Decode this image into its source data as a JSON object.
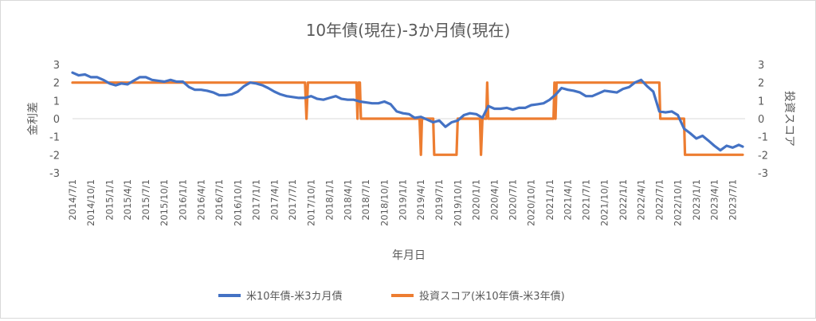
{
  "chart_data": {
    "type": "line",
    "title": "10年債(現在)-3か月債(現在)",
    "xlabel": "年月日",
    "ylabel_left": "金利差",
    "ylabel_right": "投資スコア",
    "ylim_left": [
      -3,
      3
    ],
    "ylim_right": [
      -3,
      3
    ],
    "yticks": [
      "3",
      "2",
      "1",
      "0",
      "-1",
      "-2",
      "-3"
    ],
    "xlim": [
      "2014-07-01",
      "2023-09-01"
    ],
    "x_tick_labels": [
      "2014/7/1",
      "2014/10/1",
      "2015/1/1",
      "2015/4/1",
      "2015/7/1",
      "2015/10/1",
      "2016/1/1",
      "2016/4/1",
      "2016/7/1",
      "2016/10/1",
      "2017/1/1",
      "2017/4/1",
      "2017/7/1",
      "2017/10/1",
      "2018/1/1",
      "2018/4/1",
      "2018/7/1",
      "2018/10/1",
      "2019/1/1",
      "2019/4/1",
      "2019/7/1",
      "2019/10/1",
      "2020/1/1",
      "2020/4/1",
      "2020/7/1",
      "2020/10/1",
      "2021/1/1",
      "2021/4/1",
      "2021/7/1",
      "2021/10/1",
      "2022/1/1",
      "2022/4/1",
      "2022/7/1",
      "2022/10/1",
      "2023/1/1",
      "2023/4/1",
      "2023/7/1"
    ],
    "grid": false,
    "legend_position": "bottom",
    "series": [
      {
        "name": "米10年債-米3カ月債",
        "color": "#4472c4",
        "axis": "left",
        "points": [
          [
            "2014-07-01",
            2.55
          ],
          [
            "2014-08-01",
            2.4
          ],
          [
            "2014-09-01",
            2.45
          ],
          [
            "2014-10-01",
            2.3
          ],
          [
            "2014-11-01",
            2.3
          ],
          [
            "2014-12-01",
            2.15
          ],
          [
            "2015-01-01",
            1.95
          ],
          [
            "2015-02-01",
            1.85
          ],
          [
            "2015-03-01",
            1.95
          ],
          [
            "2015-04-01",
            1.9
          ],
          [
            "2015-05-01",
            2.1
          ],
          [
            "2015-06-01",
            2.3
          ],
          [
            "2015-07-01",
            2.3
          ],
          [
            "2015-08-01",
            2.15
          ],
          [
            "2015-09-01",
            2.1
          ],
          [
            "2015-10-01",
            2.05
          ],
          [
            "2015-11-01",
            2.15
          ],
          [
            "2015-12-01",
            2.05
          ],
          [
            "2016-01-01",
            2.05
          ],
          [
            "2016-02-01",
            1.75
          ],
          [
            "2016-03-01",
            1.6
          ],
          [
            "2016-04-01",
            1.6
          ],
          [
            "2016-05-01",
            1.55
          ],
          [
            "2016-06-01",
            1.45
          ],
          [
            "2016-07-01",
            1.3
          ],
          [
            "2016-08-01",
            1.3
          ],
          [
            "2016-09-01",
            1.35
          ],
          [
            "2016-10-01",
            1.5
          ],
          [
            "2016-11-01",
            1.8
          ],
          [
            "2016-12-01",
            2.0
          ],
          [
            "2017-01-01",
            1.95
          ],
          [
            "2017-02-01",
            1.85
          ],
          [
            "2017-03-01",
            1.7
          ],
          [
            "2017-04-01",
            1.5
          ],
          [
            "2017-05-01",
            1.35
          ],
          [
            "2017-06-01",
            1.25
          ],
          [
            "2017-07-01",
            1.2
          ],
          [
            "2017-08-01",
            1.15
          ],
          [
            "2017-09-01",
            1.15
          ],
          [
            "2017-10-01",
            1.25
          ],
          [
            "2017-11-01",
            1.1
          ],
          [
            "2017-12-01",
            1.05
          ],
          [
            "2018-01-01",
            1.15
          ],
          [
            "2018-02-01",
            1.25
          ],
          [
            "2018-03-01",
            1.1
          ],
          [
            "2018-04-01",
            1.05
          ],
          [
            "2018-05-01",
            1.05
          ],
          [
            "2018-06-01",
            0.95
          ],
          [
            "2018-07-01",
            0.9
          ],
          [
            "2018-08-01",
            0.85
          ],
          [
            "2018-09-01",
            0.85
          ],
          [
            "2018-10-01",
            0.95
          ],
          [
            "2018-11-01",
            0.8
          ],
          [
            "2018-12-01",
            0.4
          ],
          [
            "2019-01-01",
            0.3
          ],
          [
            "2019-02-01",
            0.25
          ],
          [
            "2019-03-01",
            0.05
          ],
          [
            "2019-04-01",
            0.1
          ],
          [
            "2019-05-01",
            -0.05
          ],
          [
            "2019-06-01",
            -0.2
          ],
          [
            "2019-07-01",
            -0.1
          ],
          [
            "2019-08-01",
            -0.45
          ],
          [
            "2019-09-01",
            -0.2
          ],
          [
            "2019-10-01",
            -0.1
          ],
          [
            "2019-11-01",
            0.2
          ],
          [
            "2019-12-01",
            0.3
          ],
          [
            "2020-01-01",
            0.25
          ],
          [
            "2020-02-01",
            0.05
          ],
          [
            "2020-03-01",
            0.7
          ],
          [
            "2020-04-01",
            0.55
          ],
          [
            "2020-05-01",
            0.55
          ],
          [
            "2020-06-01",
            0.6
          ],
          [
            "2020-07-01",
            0.5
          ],
          [
            "2020-08-01",
            0.6
          ],
          [
            "2020-09-01",
            0.6
          ],
          [
            "2020-10-01",
            0.75
          ],
          [
            "2020-11-01",
            0.8
          ],
          [
            "2020-12-01",
            0.85
          ],
          [
            "2021-01-01",
            1.05
          ],
          [
            "2021-02-01",
            1.35
          ],
          [
            "2021-03-01",
            1.7
          ],
          [
            "2021-04-01",
            1.6
          ],
          [
            "2021-05-01",
            1.55
          ],
          [
            "2021-06-01",
            1.45
          ],
          [
            "2021-07-01",
            1.25
          ],
          [
            "2021-08-01",
            1.25
          ],
          [
            "2021-09-01",
            1.4
          ],
          [
            "2021-10-01",
            1.55
          ],
          [
            "2021-11-01",
            1.5
          ],
          [
            "2021-12-01",
            1.45
          ],
          [
            "2022-01-01",
            1.65
          ],
          [
            "2022-02-01",
            1.75
          ],
          [
            "2022-03-01",
            2.0
          ],
          [
            "2022-04-01",
            2.15
          ],
          [
            "2022-05-01",
            1.8
          ],
          [
            "2022-06-01",
            1.5
          ],
          [
            "2022-07-01",
            0.4
          ],
          [
            "2022-08-01",
            0.35
          ],
          [
            "2022-09-01",
            0.4
          ],
          [
            "2022-10-01",
            0.2
          ],
          [
            "2022-11-01",
            -0.55
          ],
          [
            "2022-12-01",
            -0.8
          ],
          [
            "2023-01-01",
            -1.1
          ],
          [
            "2023-02-01",
            -0.95
          ],
          [
            "2023-03-01",
            -1.2
          ],
          [
            "2023-04-01",
            -1.5
          ],
          [
            "2023-05-01",
            -1.75
          ],
          [
            "2023-06-01",
            -1.5
          ],
          [
            "2023-07-01",
            -1.6
          ],
          [
            "2023-08-01",
            -1.45
          ],
          [
            "2023-08-20",
            -1.55
          ]
        ]
      },
      {
        "name": "投資スコア(米10年債-米3年債)",
        "color": "#ed7d31",
        "axis": "right",
        "points": [
          [
            "2014-07-01",
            2
          ],
          [
            "2017-09-01",
            2
          ],
          [
            "2017-09-08",
            0
          ],
          [
            "2017-09-15",
            2
          ],
          [
            "2018-05-15",
            2
          ],
          [
            "2018-05-20",
            0
          ],
          [
            "2018-05-25",
            2
          ],
          [
            "2018-06-01",
            2
          ],
          [
            "2018-06-06",
            0
          ],
          [
            "2019-03-25",
            0
          ],
          [
            "2019-04-01",
            -2
          ],
          [
            "2019-04-06",
            0
          ],
          [
            "2019-06-01",
            0
          ],
          [
            "2019-06-06",
            -2
          ],
          [
            "2019-09-25",
            -2
          ],
          [
            "2019-10-01",
            0
          ],
          [
            "2020-01-20",
            0
          ],
          [
            "2020-01-25",
            -2
          ],
          [
            "2020-02-01",
            0
          ],
          [
            "2020-02-20",
            0
          ],
          [
            "2020-02-25",
            2
          ],
          [
            "2020-03-01",
            0
          ],
          [
            "2021-01-20",
            0
          ],
          [
            "2021-01-25",
            2
          ],
          [
            "2021-01-30",
            0
          ],
          [
            "2021-02-04",
            2
          ],
          [
            "2022-07-01",
            2
          ],
          [
            "2022-07-06",
            0
          ],
          [
            "2022-11-01",
            0
          ],
          [
            "2022-11-06",
            -2
          ],
          [
            "2023-08-20",
            -2
          ]
        ]
      }
    ]
  }
}
